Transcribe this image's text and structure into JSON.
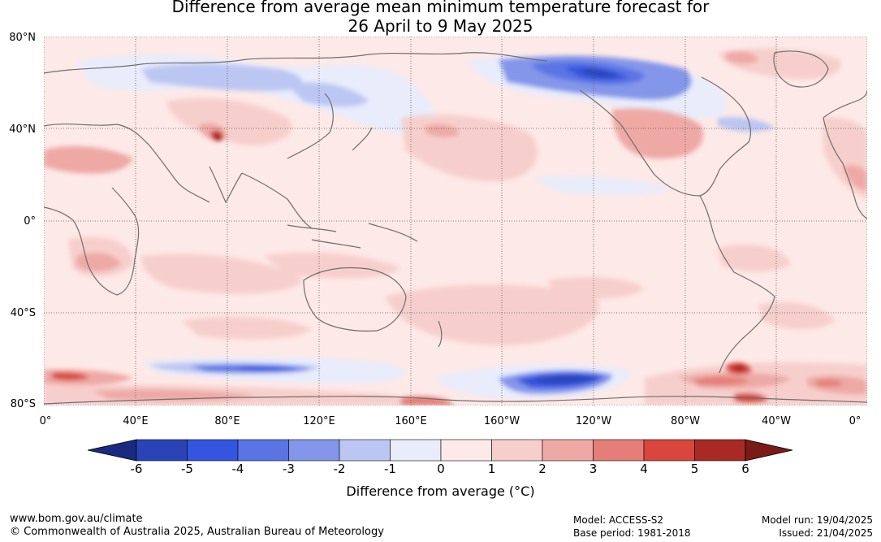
{
  "title_line1": "Difference from average mean minimum temperature forecast for",
  "title_line2": "26 April to 9 May 2025",
  "lat_labels": [
    "80°N",
    "40°N",
    "0°",
    "40°S",
    "80°S"
  ],
  "lon_labels": [
    "0°",
    "40°E",
    "80°E",
    "120°E",
    "160°E",
    "160°W",
    "120°W",
    "80°W",
    "40°W",
    "0°"
  ],
  "colorbar": {
    "ticks": [
      "-6",
      "-5",
      "-4",
      "-3",
      "-2",
      "-1",
      "0",
      "1",
      "2",
      "3",
      "4",
      "5",
      "6"
    ],
    "colors": [
      "#1a2a7e",
      "#2a44b8",
      "#3455e0",
      "#5a74e4",
      "#8496ea",
      "#bcc6f3",
      "#e8ecfb",
      "#fde9e7",
      "#f6cfcc",
      "#eea9a5",
      "#e57e78",
      "#d9463d",
      "#a92a24",
      "#7a1b18"
    ],
    "label": "Difference from average (°C)"
  },
  "footer": {
    "url": "www.bom.gov.au/climate",
    "copyright": "© Commonwealth of Australia 2025, Australian Bureau of Meteorology",
    "model": "Model: ACCESS-S2",
    "base_period": "Base period: 1981-2018",
    "model_run": "Model run: 19/04/2025",
    "issued": "Issued: 21/04/2025"
  }
}
